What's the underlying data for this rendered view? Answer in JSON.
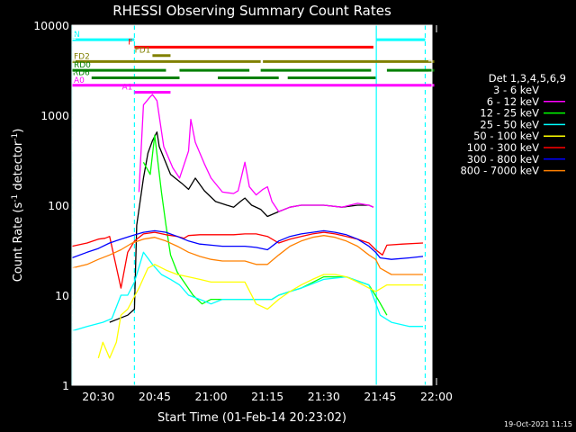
{
  "chart_data": {
    "type": "line",
    "title": "RHESSI Observing Summary Count Rates",
    "xlabel": "Start Time (01-Feb-14 20:23:02)",
    "ylabel_main": "Count Rate (s",
    "ylabel_sup1": "-1",
    "ylabel_mid": " detector",
    "ylabel_sup2": "-1",
    "ylabel_end": ")",
    "footer": "19-Oct-2021 11:15",
    "x_range_minutes": [
      20.383,
      21.98
    ],
    "y_scale": "log",
    "y_range": [
      1,
      10000
    ],
    "x_ticks": [
      {
        "t": 20.5,
        "label": "20:30"
      },
      {
        "t": 20.75,
        "label": "20:45"
      },
      {
        "t": 21.0,
        "label": "21:00"
      },
      {
        "t": 21.25,
        "label": "21:15"
      },
      {
        "t": 21.5,
        "label": "21:30"
      },
      {
        "t": 21.75,
        "label": "21:45"
      },
      {
        "t": 22.0,
        "label": "22:00"
      }
    ],
    "y_ticks": [
      {
        "v": 1,
        "label": "1"
      },
      {
        "v": 10,
        "label": "10"
      },
      {
        "v": 100,
        "label": "100"
      },
      {
        "v": 1000,
        "label": "1000"
      },
      {
        "v": 10000,
        "label": "10000"
      }
    ],
    "legend_header": "Det 1,3,4,5,6,9",
    "legend_position": "right",
    "series": [
      {
        "name": "3 - 6 keV",
        "color": "#000000",
        "points": [
          [
            20.55,
            5
          ],
          [
            20.63,
            6
          ],
          [
            20.66,
            7
          ],
          [
            20.67,
            60
          ],
          [
            20.7,
            200
          ],
          [
            20.72,
            380
          ],
          [
            20.74,
            520
          ],
          [
            20.76,
            650
          ],
          [
            20.77,
            450
          ],
          [
            20.82,
            220
          ],
          [
            20.87,
            175
          ],
          [
            20.9,
            150
          ],
          [
            20.93,
            200
          ],
          [
            20.97,
            145
          ],
          [
            21.02,
            110
          ],
          [
            21.07,
            100
          ],
          [
            21.1,
            95
          ],
          [
            21.13,
            110
          ],
          [
            21.15,
            120
          ],
          [
            21.18,
            100
          ],
          [
            21.22,
            90
          ],
          [
            21.25,
            75
          ],
          [
            21.3,
            85
          ],
          [
            21.35,
            95
          ],
          [
            21.4,
            100
          ],
          [
            21.5,
            100
          ],
          [
            21.58,
            95
          ],
          [
            21.65,
            100
          ],
          [
            21.7,
            100
          ],
          [
            21.72,
            95
          ]
        ]
      },
      {
        "name": "6 - 12 keV",
        "color": "#ff00ff",
        "points": [
          [
            20.68,
            140
          ],
          [
            20.7,
            1300
          ],
          [
            20.73,
            1600
          ],
          [
            20.74,
            1700
          ],
          [
            20.76,
            1450
          ],
          [
            20.79,
            450
          ],
          [
            20.83,
            260
          ],
          [
            20.86,
            200
          ],
          [
            20.9,
            400
          ],
          [
            20.91,
            900
          ],
          [
            20.93,
            500
          ],
          [
            20.97,
            290
          ],
          [
            21.0,
            200
          ],
          [
            21.05,
            140
          ],
          [
            21.1,
            135
          ],
          [
            21.12,
            145
          ],
          [
            21.15,
            300
          ],
          [
            21.17,
            160
          ],
          [
            21.2,
            130
          ],
          [
            21.23,
            150
          ],
          [
            21.25,
            160
          ],
          [
            21.27,
            110
          ],
          [
            21.3,
            85
          ],
          [
            21.35,
            95
          ],
          [
            21.4,
            100
          ],
          [
            21.5,
            100
          ],
          [
            21.58,
            95
          ],
          [
            21.65,
            105
          ],
          [
            21.7,
            100
          ],
          [
            21.72,
            95
          ]
        ]
      },
      {
        "name": "12 - 25 keV",
        "color": "#00ff00",
        "points": [
          [
            20.7,
            300
          ],
          [
            20.73,
            220
          ],
          [
            20.75,
            600
          ],
          [
            20.78,
            140
          ],
          [
            20.8,
            60
          ],
          [
            20.82,
            28
          ],
          [
            20.85,
            18
          ],
          [
            20.88,
            14
          ],
          [
            20.92,
            10
          ],
          [
            20.96,
            8
          ],
          [
            21.0,
            9
          ],
          [
            21.05,
            9
          ],
          [
            21.1,
            9
          ],
          [
            21.15,
            9
          ],
          [
            21.2,
            9
          ],
          [
            21.25,
            9
          ],
          [
            21.27,
            9
          ],
          [
            21.3,
            10
          ],
          [
            21.35,
            11
          ],
          [
            21.4,
            12
          ],
          [
            21.5,
            16
          ],
          [
            21.6,
            16
          ],
          [
            21.7,
            13
          ],
          [
            21.74,
            9
          ],
          [
            21.78,
            6
          ]
        ]
      },
      {
        "name": "25 - 50 keV",
        "color": "#00ffff",
        "points": [
          [
            20.383,
            4
          ],
          [
            20.45,
            4.5
          ],
          [
            20.52,
            5
          ],
          [
            20.56,
            5.5
          ],
          [
            20.6,
            10
          ],
          [
            20.63,
            10
          ],
          [
            20.66,
            14
          ],
          [
            20.7,
            30
          ],
          [
            20.74,
            22
          ],
          [
            20.78,
            17
          ],
          [
            20.82,
            15
          ],
          [
            20.86,
            13
          ],
          [
            20.9,
            10
          ],
          [
            20.95,
            9
          ],
          [
            21.0,
            8
          ],
          [
            21.05,
            9
          ],
          [
            21.1,
            9
          ],
          [
            21.15,
            9
          ],
          [
            21.2,
            9
          ],
          [
            21.25,
            9
          ],
          [
            21.27,
            9
          ],
          [
            21.3,
            10
          ],
          [
            21.35,
            11
          ],
          [
            21.4,
            12
          ],
          [
            21.5,
            15
          ],
          [
            21.6,
            16
          ],
          [
            21.7,
            13
          ],
          [
            21.75,
            6
          ],
          [
            21.8,
            5
          ],
          [
            21.88,
            4.5
          ],
          [
            21.94,
            4.5
          ]
        ]
      },
      {
        "name": "50 - 100 keV",
        "color": "#ffff00",
        "points": [
          [
            20.5,
            2
          ],
          [
            20.52,
            3
          ],
          [
            20.55,
            2
          ],
          [
            20.58,
            3
          ],
          [
            20.6,
            6
          ],
          [
            20.63,
            7
          ],
          [
            20.68,
            12
          ],
          [
            20.72,
            20
          ],
          [
            20.75,
            22
          ],
          [
            20.8,
            19
          ],
          [
            20.85,
            17
          ],
          [
            20.9,
            16
          ],
          [
            20.95,
            15
          ],
          [
            21.0,
            14
          ],
          [
            21.05,
            14
          ],
          [
            21.1,
            14
          ],
          [
            21.15,
            14
          ],
          [
            21.2,
            8
          ],
          [
            21.25,
            7
          ],
          [
            21.3,
            9
          ],
          [
            21.35,
            11
          ],
          [
            21.4,
            13
          ],
          [
            21.45,
            15
          ],
          [
            21.5,
            17
          ],
          [
            21.55,
            17
          ],
          [
            21.6,
            16
          ],
          [
            21.65,
            14
          ],
          [
            21.7,
            12
          ],
          [
            21.73,
            11
          ],
          [
            21.78,
            13
          ],
          [
            21.85,
            13
          ],
          [
            21.94,
            13
          ]
        ]
      },
      {
        "name": "100 - 300 keV",
        "color": "#ff0000",
        "points": [
          [
            20.383,
            35
          ],
          [
            20.45,
            38
          ],
          [
            20.5,
            42
          ],
          [
            20.53,
            43
          ],
          [
            20.55,
            45
          ],
          [
            20.6,
            12
          ],
          [
            20.63,
            30
          ],
          [
            20.66,
            40
          ],
          [
            20.7,
            48
          ],
          [
            20.75,
            50
          ],
          [
            20.8,
            47
          ],
          [
            20.85,
            45
          ],
          [
            20.88,
            43
          ],
          [
            20.9,
            46
          ],
          [
            20.95,
            47
          ],
          [
            21.0,
            47
          ],
          [
            21.05,
            47
          ],
          [
            21.1,
            47
          ],
          [
            21.15,
            48
          ],
          [
            21.2,
            48
          ],
          [
            21.25,
            45
          ],
          [
            21.3,
            38
          ],
          [
            21.35,
            42
          ],
          [
            21.4,
            45
          ],
          [
            21.45,
            48
          ],
          [
            21.5,
            50
          ],
          [
            21.55,
            48
          ],
          [
            21.6,
            45
          ],
          [
            21.65,
            42
          ],
          [
            21.7,
            38
          ],
          [
            21.73,
            32
          ],
          [
            21.76,
            28
          ],
          [
            21.78,
            36
          ],
          [
            21.85,
            37
          ],
          [
            21.94,
            38
          ]
        ]
      },
      {
        "name": "300 - 800 keV",
        "color": "#0000ff",
        "points": [
          [
            20.383,
            26
          ],
          [
            20.45,
            30
          ],
          [
            20.5,
            33
          ],
          [
            20.55,
            38
          ],
          [
            20.6,
            42
          ],
          [
            20.65,
            46
          ],
          [
            20.7,
            50
          ],
          [
            20.75,
            52
          ],
          [
            20.8,
            50
          ],
          [
            20.85,
            45
          ],
          [
            20.9,
            40
          ],
          [
            20.95,
            37
          ],
          [
            21.0,
            36
          ],
          [
            21.05,
            35
          ],
          [
            21.1,
            35
          ],
          [
            21.15,
            35
          ],
          [
            21.2,
            34
          ],
          [
            21.25,
            32
          ],
          [
            21.3,
            40
          ],
          [
            21.35,
            45
          ],
          [
            21.4,
            48
          ],
          [
            21.45,
            50
          ],
          [
            21.5,
            52
          ],
          [
            21.55,
            50
          ],
          [
            21.6,
            47
          ],
          [
            21.65,
            42
          ],
          [
            21.7,
            35
          ],
          [
            21.73,
            30
          ],
          [
            21.75,
            26
          ],
          [
            21.8,
            25
          ],
          [
            21.88,
            26
          ],
          [
            21.94,
            27
          ]
        ]
      },
      {
        "name": "800 - 7000 keV",
        "color": "#ff8000",
        "points": [
          [
            20.383,
            20
          ],
          [
            20.45,
            22
          ],
          [
            20.5,
            25
          ],
          [
            20.55,
            28
          ],
          [
            20.6,
            32
          ],
          [
            20.65,
            38
          ],
          [
            20.7,
            42
          ],
          [
            20.75,
            44
          ],
          [
            20.8,
            40
          ],
          [
            20.85,
            35
          ],
          [
            20.9,
            30
          ],
          [
            20.95,
            27
          ],
          [
            21.0,
            25
          ],
          [
            21.05,
            24
          ],
          [
            21.1,
            24
          ],
          [
            21.15,
            24
          ],
          [
            21.2,
            22
          ],
          [
            21.25,
            22
          ],
          [
            21.3,
            28
          ],
          [
            21.35,
            35
          ],
          [
            21.4,
            40
          ],
          [
            21.45,
            44
          ],
          [
            21.5,
            46
          ],
          [
            21.55,
            44
          ],
          [
            21.6,
            40
          ],
          [
            21.65,
            35
          ],
          [
            21.7,
            28
          ],
          [
            21.73,
            25
          ],
          [
            21.75,
            20
          ],
          [
            21.8,
            17
          ],
          [
            21.88,
            17
          ],
          [
            21.94,
            17
          ]
        ]
      }
    ],
    "bars": [
      {
        "label": "N",
        "color": "#00ffff",
        "segments": [
          [
            20.383,
            20.66
          ],
          [
            21.733,
            21.95
          ]
        ]
      },
      {
        "label": "F",
        "color": "#ff0000",
        "segments": [
          [
            20.66,
            21.72
          ]
        ]
      },
      {
        "label": "FD1",
        "color": "#808000",
        "segments": [
          [
            20.74,
            20.82
          ]
        ]
      },
      {
        "label": "FD2",
        "color": "#808000",
        "segments": [
          [
            20.383,
            21.22
          ],
          [
            21.23,
            21.99
          ]
        ]
      },
      {
        "label": "RD0",
        "color": "#008000",
        "segments": [
          [
            20.383,
            20.8
          ],
          [
            20.86,
            21.17
          ],
          [
            21.22,
            21.71
          ],
          [
            21.78,
            21.99
          ]
        ]
      },
      {
        "label": "RD6",
        "color": "#008000",
        "segments": [
          [
            20.47,
            20.86
          ],
          [
            21.03,
            21.3
          ],
          [
            21.34,
            21.73
          ]
        ]
      },
      {
        "label": "A0",
        "color": "#ff00ff",
        "segments": [
          [
            20.383,
            21.99
          ]
        ]
      },
      {
        "label": "A1",
        "color": "#ff00ff",
        "segments": [
          [
            20.66,
            20.82
          ]
        ]
      }
    ],
    "bar_levels": {
      "N": 6900,
      "F": 5700,
      "FD1": 4600,
      "FD2": 3950,
      "RD0": 3150,
      "RD6": 2600,
      "A0": 2150,
      "A1": 1800
    },
    "vlines": [
      {
        "t": 20.383,
        "color": "#00ffff",
        "style": "solid"
      },
      {
        "t": 20.66,
        "color": "#00ffff",
        "style": "dashed"
      },
      {
        "t": 21.733,
        "color": "#00ffff",
        "style": "solid"
      },
      {
        "t": 21.95,
        "color": "#00ffff",
        "style": "dashed"
      }
    ]
  }
}
